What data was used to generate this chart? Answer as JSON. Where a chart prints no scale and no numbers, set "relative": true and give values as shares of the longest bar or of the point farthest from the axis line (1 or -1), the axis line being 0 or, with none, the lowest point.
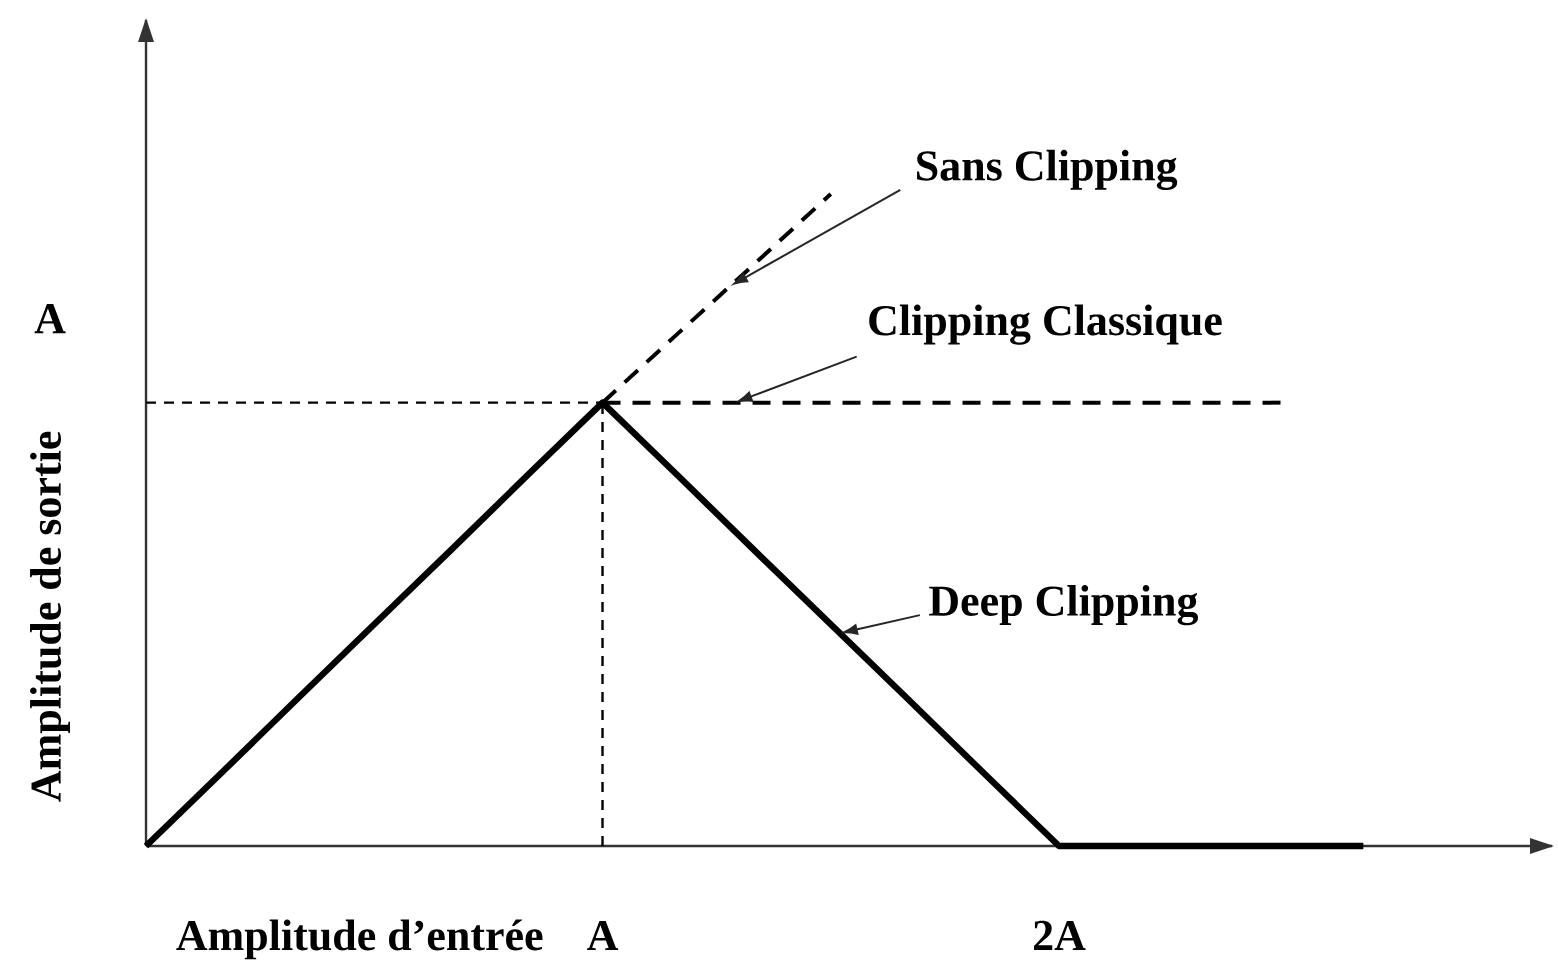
{
  "chart_data": {
    "type": "line",
    "relative": true,
    "xlabel": "Amplitude d’entrée",
    "ylabel": "Amplitude de sortie",
    "categories": [
      null,
      null,
      null,
      null,
      null,
      null,
      "A",
      null,
      null,
      null,
      null,
      null,
      "2A",
      null,
      null,
      null,
      null
    ],
    "series": [
      {
        "name": "Sans Clipping",
        "color": "#000000",
        "line_style": "dashed",
        "values": [
          null,
          null,
          null,
          null,
          null,
          null,
          0.68,
          0.787,
          0.893,
          1,
          null,
          null,
          null,
          null,
          null,
          null,
          null
        ]
      },
      {
        "name": "Clipping Classique",
        "color": "#000000",
        "line_style": "dashed",
        "values": [
          null,
          null,
          null,
          null,
          null,
          null,
          0.68,
          0.68,
          0.68,
          0.68,
          0.68,
          0.68,
          0.68,
          0.68,
          0.68,
          0.68,
          null
        ]
      },
      {
        "name": "Deep Clipping",
        "color": "#000000",
        "line_style": "solid",
        "values": [
          0,
          0.113,
          0.227,
          0.34,
          0.453,
          0.567,
          0.68,
          0.567,
          0.453,
          0.34,
          0.227,
          0.113,
          0,
          0,
          0,
          0,
          0
        ]
      }
    ],
    "ref_lines": [
      {
        "axis": "x",
        "value": "A",
        "line_style": "dashed",
        "color": "#000000"
      },
      {
        "axis": "y",
        "value": 0.68,
        "label": "A",
        "line_style": "dashed",
        "color": "#000000"
      }
    ]
  }
}
